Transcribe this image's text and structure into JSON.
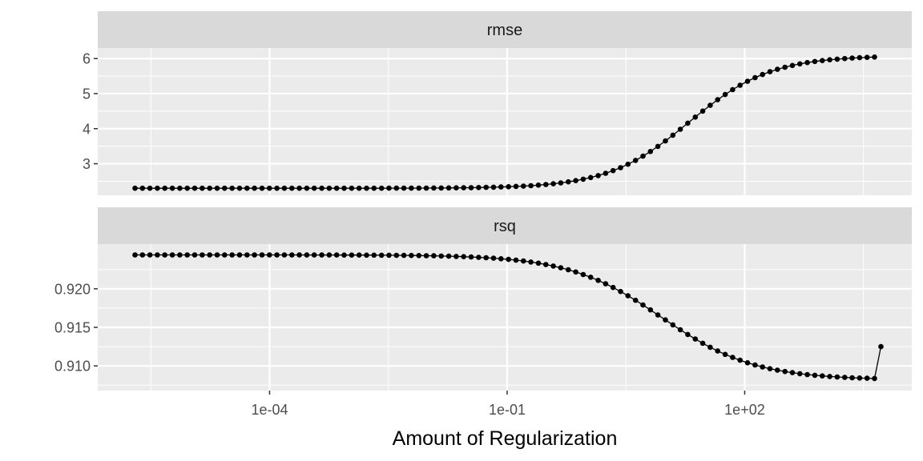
{
  "chart_data": {
    "type": "line",
    "xlabel": "Amount of Regularization",
    "x_scale": "log10",
    "x_ticks": [
      "1e-04",
      "1e-01",
      "1e+02"
    ],
    "x_tick_values": [
      0.0001,
      0.1,
      100
    ],
    "grid": true,
    "colors": {
      "panel_bg": "#ebebeb",
      "strip_bg": "#d9d9d9",
      "grid": "#ffffff",
      "series": "#000000"
    },
    "facets": [
      {
        "name": "rmse",
        "strip_label": "rmse",
        "y_ticks": [
          "3",
          "4",
          "5",
          "6"
        ],
        "y_tick_values": [
          3,
          4,
          5,
          6
        ],
        "series": {
          "log10_x_start": -5.7,
          "log10_x_end": 3.64,
          "n_points": 100,
          "low": 2.3,
          "high": 6.08,
          "log10_midpoint": 1.3,
          "steepness": 1.95
        }
      },
      {
        "name": "rsq",
        "strip_label": "rsq",
        "y_ticks": [
          "0.910",
          "0.915",
          "0.920"
        ],
        "y_tick_values": [
          0.91,
          0.915,
          0.92
        ],
        "series": {
          "log10_x_start": -5.7,
          "log10_x_end": 3.64,
          "n_points": 100,
          "low": 0.9082,
          "high": 0.9244,
          "log10_midpoint": 0.95,
          "steepness": 1.7,
          "last_point_value": 0.9125
        }
      }
    ]
  }
}
